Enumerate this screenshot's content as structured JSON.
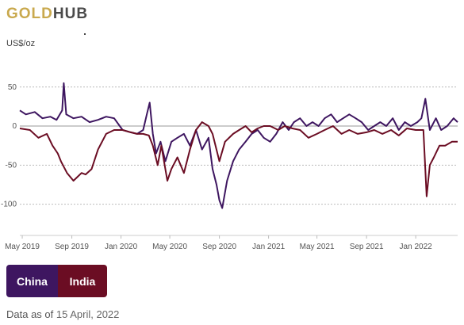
{
  "brand": {
    "gold": "GOLD",
    "hub": "HUB"
  },
  "y_unit": "US$/oz",
  "legend": {
    "china": "China",
    "india": "India"
  },
  "footer": {
    "prefix": "Data as of",
    "date": "15 April, 2022"
  },
  "colors": {
    "china": "#3e1660",
    "india": "#6b0d23",
    "grid": "#bbbbbb",
    "zero": "#999999"
  },
  "chart_data": {
    "type": "line",
    "title": "",
    "xlabel": "",
    "ylabel": "US$/oz",
    "ylim": [
      -140,
      65
    ],
    "yticks": [
      50,
      0,
      -50,
      -100
    ],
    "xlim": [
      "2019-04-25",
      "2022-04-15"
    ],
    "xticks": [
      {
        "date": "2019-05-01",
        "label": "May 2019"
      },
      {
        "date": "2019-09-01",
        "label": "Sep 2019"
      },
      {
        "date": "2020-01-01",
        "label": "Jan 2020"
      },
      {
        "date": "2020-05-01",
        "label": "May 2020"
      },
      {
        "date": "2020-09-01",
        "label": "Sep 2020"
      },
      {
        "date": "2021-01-01",
        "label": "Jan 2021"
      },
      {
        "date": "2021-05-01",
        "label": "May 2021"
      },
      {
        "date": "2021-09-01",
        "label": "Sep 2021"
      },
      {
        "date": "2022-01-01",
        "label": "Jan 2022"
      }
    ],
    "grid": true,
    "series": [
      {
        "name": "China",
        "x": [
          "2019-04-25",
          "2019-05-10",
          "2019-06-01",
          "2019-06-20",
          "2019-07-10",
          "2019-07-25",
          "2019-08-08",
          "2019-08-12",
          "2019-08-18",
          "2019-09-05",
          "2019-09-25",
          "2019-10-15",
          "2019-11-05",
          "2019-11-25",
          "2019-12-15",
          "2020-01-05",
          "2020-01-25",
          "2020-02-10",
          "2020-02-25",
          "2020-03-05",
          "2020-03-12",
          "2020-03-20",
          "2020-03-28",
          "2020-04-08",
          "2020-04-20",
          "2020-05-05",
          "2020-05-20",
          "2020-06-05",
          "2020-06-20",
          "2020-07-05",
          "2020-07-20",
          "2020-08-05",
          "2020-08-15",
          "2020-08-25",
          "2020-09-01",
          "2020-09-08",
          "2020-09-20",
          "2020-10-05",
          "2020-10-20",
          "2020-11-05",
          "2020-11-20",
          "2020-12-05",
          "2020-12-20",
          "2021-01-05",
          "2021-01-20",
          "2021-02-05",
          "2021-02-20",
          "2021-03-05",
          "2021-03-20",
          "2021-04-05",
          "2021-04-20",
          "2021-05-05",
          "2021-05-20",
          "2021-06-05",
          "2021-06-20",
          "2021-07-05",
          "2021-07-20",
          "2021-08-05",
          "2021-08-20",
          "2021-09-05",
          "2021-09-20",
          "2021-10-05",
          "2021-10-20",
          "2021-11-05",
          "2021-11-20",
          "2021-12-05",
          "2021-12-20",
          "2022-01-05",
          "2022-01-15",
          "2022-01-25",
          "2022-02-05",
          "2022-02-20",
          "2022-03-05",
          "2022-03-20",
          "2022-04-05",
          "2022-04-15"
        ],
        "y": [
          20,
          15,
          18,
          10,
          12,
          8,
          20,
          55,
          15,
          10,
          12,
          5,
          8,
          12,
          10,
          -5,
          -8,
          -10,
          -5,
          15,
          30,
          -10,
          -35,
          -20,
          -45,
          -20,
          -15,
          -10,
          -25,
          -5,
          -30,
          -15,
          -55,
          -75,
          -95,
          -105,
          -70,
          -45,
          -30,
          -20,
          -10,
          -5,
          -15,
          -20,
          -10,
          5,
          -5,
          5,
          10,
          0,
          5,
          0,
          10,
          15,
          5,
          10,
          15,
          10,
          5,
          -5,
          0,
          5,
          0,
          10,
          -5,
          5,
          0,
          5,
          10,
          35,
          -5,
          10,
          -5,
          0,
          10,
          5
        ]
      },
      {
        "name": "India",
        "x": [
          "2019-04-25",
          "2019-05-20",
          "2019-06-10",
          "2019-07-01",
          "2019-07-15",
          "2019-07-28",
          "2019-08-05",
          "2019-08-20",
          "2019-09-05",
          "2019-09-15",
          "2019-09-25",
          "2019-10-05",
          "2019-10-20",
          "2019-11-05",
          "2019-11-25",
          "2019-12-15",
          "2020-01-05",
          "2020-01-25",
          "2020-02-10",
          "2020-02-25",
          "2020-03-10",
          "2020-03-20",
          "2020-04-01",
          "2020-04-10",
          "2020-04-25",
          "2020-05-05",
          "2020-05-20",
          "2020-06-05",
          "2020-06-20",
          "2020-07-05",
          "2020-07-20",
          "2020-08-05",
          "2020-08-15",
          "2020-09-01",
          "2020-09-15",
          "2020-10-05",
          "2020-10-20",
          "2020-11-05",
          "2020-11-20",
          "2020-12-05",
          "2020-12-20",
          "2021-01-05",
          "2021-01-25",
          "2021-02-10",
          "2021-03-01",
          "2021-03-20",
          "2021-04-10",
          "2021-05-01",
          "2021-05-20",
          "2021-06-10",
          "2021-07-01",
          "2021-07-20",
          "2021-08-10",
          "2021-09-01",
          "2021-09-20",
          "2021-10-10",
          "2021-11-01",
          "2021-11-20",
          "2021-12-10",
          "2022-01-01",
          "2022-01-20",
          "2022-01-28",
          "2022-02-05",
          "2022-02-15",
          "2022-03-01",
          "2022-03-15",
          "2022-04-01",
          "2022-04-15"
        ],
        "y": [
          -3,
          -5,
          -15,
          -10,
          -25,
          -35,
          -45,
          -60,
          -70,
          -65,
          -60,
          -62,
          -55,
          -30,
          -10,
          -5,
          -5,
          -8,
          -10,
          -10,
          -12,
          -25,
          -50,
          -25,
          -70,
          -55,
          -40,
          -60,
          -30,
          -5,
          5,
          0,
          -10,
          -45,
          -20,
          -10,
          -5,
          0,
          -8,
          -3,
          0,
          0,
          -5,
          0,
          -3,
          -5,
          -15,
          -10,
          -5,
          0,
          -10,
          -5,
          -10,
          -8,
          -5,
          -10,
          -5,
          -12,
          -3,
          -5,
          -5,
          -90,
          -50,
          -40,
          -25,
          -25,
          -20,
          -20
        ]
      }
    ]
  }
}
